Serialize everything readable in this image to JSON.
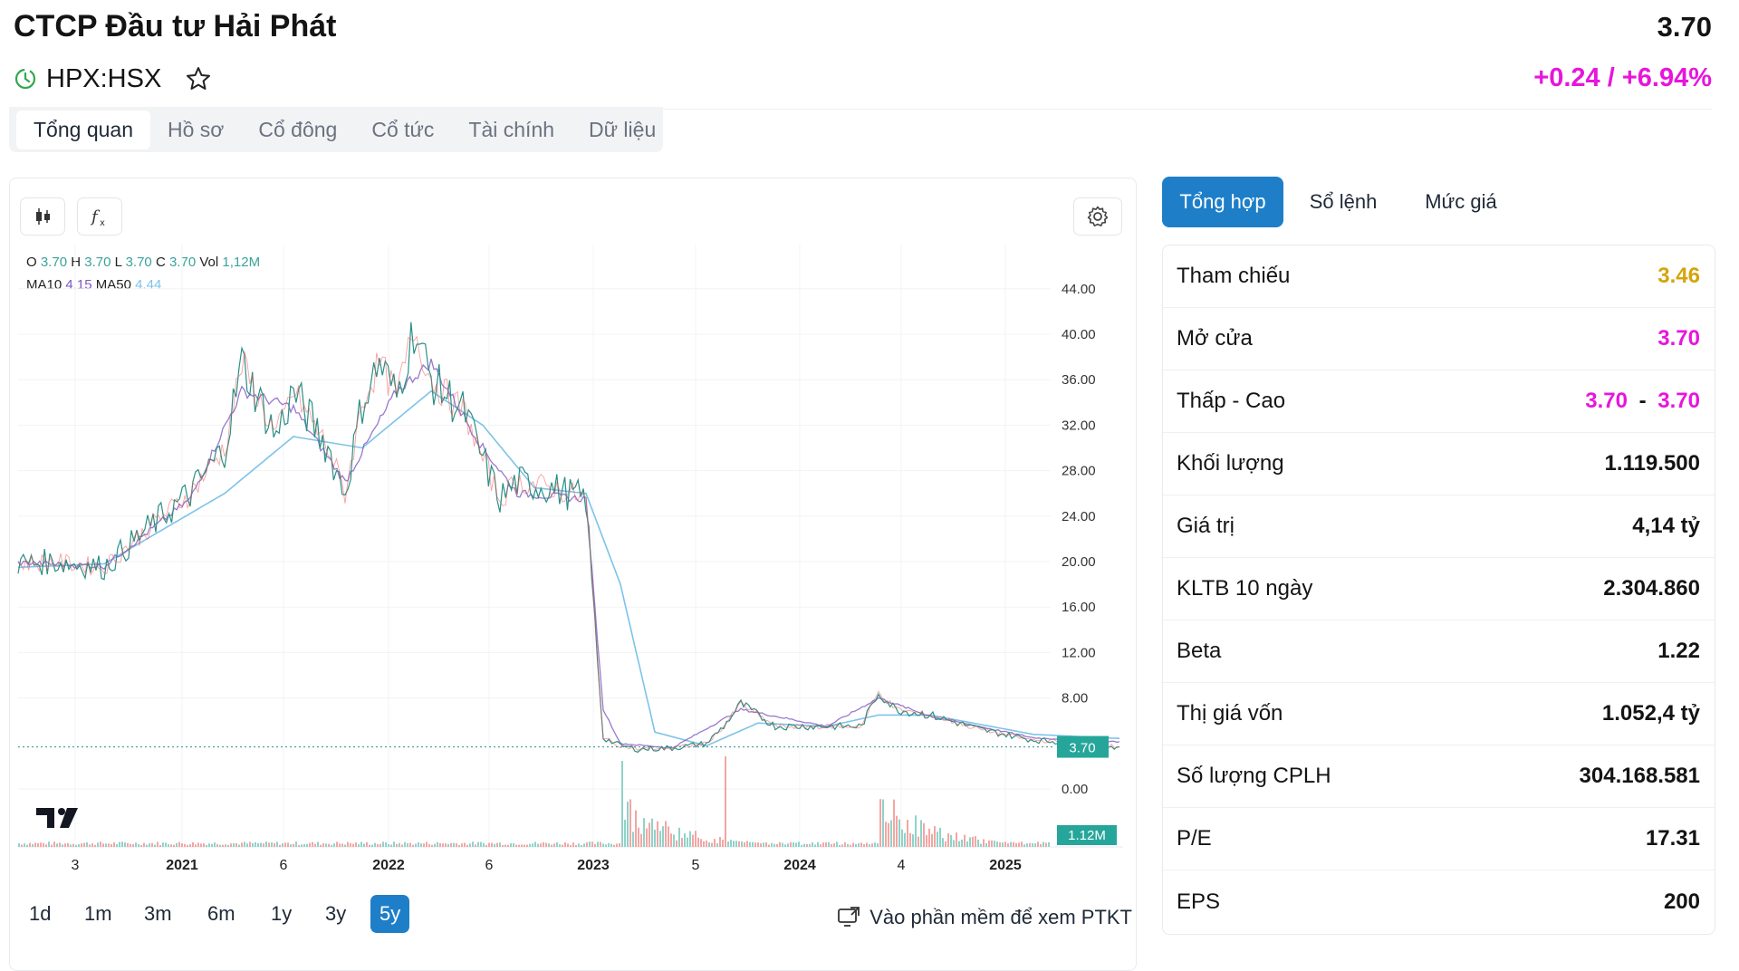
{
  "header": {
    "company_name": "CTCP Đầu tư Hải Phát",
    "ticker": "HPX:HSX",
    "price": "3.70",
    "change": "+0.24 / +6.94%"
  },
  "main_tabs": [
    "Tổng quan",
    "Hồ sơ",
    "Cổ đông",
    "Cổ tức",
    "Tài chính",
    "Dữ liệu"
  ],
  "chart": {
    "legend": {
      "o_label": "O",
      "o": "3.70",
      "h_label": "H",
      "h": "3.70",
      "l_label": "L",
      "l": "3.70",
      "c_label": "C",
      "c": "3.70",
      "vol_label": "Vol",
      "vol": "1,12M",
      "ma10_label": "MA10",
      "ma10": "4.15",
      "ma50_label": "MA50",
      "ma50": "4.44"
    },
    "price_tag": "3.70",
    "volume_tag": "1.12M",
    "ranges": [
      "1d",
      "1m",
      "3m",
      "6m",
      "1y",
      "3y",
      "5y"
    ],
    "active_range": "5y",
    "ptkt_link": "Vào phần mềm để xem PTKT"
  },
  "chart_data": {
    "type": "line",
    "title": "",
    "xlabel": "",
    "ylabel": "",
    "ylim": [
      -4.6,
      48
    ],
    "y_ticks": [
      "44.00",
      "40.00",
      "36.00",
      "32.00",
      "28.00",
      "24.00",
      "20.00",
      "16.00",
      "12.00",
      "8.00",
      "0.00"
    ],
    "x_ticks": [
      "3",
      "2021",
      "6",
      "2022",
      "6",
      "2023",
      "5",
      "2024",
      "4",
      "2025"
    ],
    "series": [
      {
        "name": "Price",
        "x": [
          "2020-01",
          "2020-03",
          "2020-06",
          "2020-09",
          "2020-11",
          "2021-01",
          "2021-02",
          "2021-04",
          "2021-05",
          "2021-07",
          "2021-08",
          "2021-09",
          "2021-10",
          "2021-11",
          "2021-12",
          "2022-01",
          "2022-03",
          "2022-04",
          "2022-05",
          "2022-06",
          "2022-08",
          "2022-10",
          "2022-11",
          "2022-12",
          "2023-01",
          "2023-03",
          "2023-05",
          "2023-06",
          "2023-07",
          "2023-09",
          "2023-12",
          "2024-02",
          "2024-03",
          "2024-04",
          "2024-06",
          "2024-09",
          "2024-12",
          "2025-03",
          "2025-05"
        ],
        "values": [
          19.8,
          20.0,
          19.5,
          23.5,
          26.0,
          30.0,
          37.5,
          31.0,
          35.0,
          30.0,
          26.0,
          34.0,
          37.5,
          34.5,
          40.5,
          36.0,
          33.0,
          29.0,
          25.5,
          27.0,
          26.5,
          25.5,
          4.5,
          3.8,
          3.5,
          3.6,
          4.0,
          5.5,
          7.5,
          5.5,
          5.5,
          5.5,
          8.5,
          7.0,
          6.5,
          5.2,
          4.3,
          4.0,
          3.7
        ]
      },
      {
        "name": "MA10",
        "x": [
          "2020-01",
          "2020-06",
          "2020-11",
          "2021-02",
          "2021-05",
          "2021-08",
          "2021-11",
          "2022-01",
          "2022-04",
          "2022-06",
          "2022-10",
          "2022-11",
          "2022-12",
          "2023-03",
          "2023-07",
          "2023-12",
          "2024-03",
          "2024-06",
          "2024-12",
          "2025-05"
        ],
        "values": [
          19.9,
          19.6,
          25.5,
          35.0,
          33.5,
          27.0,
          35.0,
          37.5,
          30.0,
          26.0,
          25.5,
          7.0,
          4.0,
          3.6,
          7.0,
          5.5,
          8.0,
          6.4,
          4.5,
          4.15
        ]
      },
      {
        "name": "MA50",
        "x": [
          "2020-01",
          "2020-06",
          "2021-01",
          "2021-05",
          "2021-09",
          "2022-01",
          "2022-04",
          "2022-07",
          "2022-10",
          "2022-12",
          "2023-02",
          "2023-05",
          "2023-08",
          "2023-12",
          "2024-03",
          "2024-06",
          "2024-12",
          "2025-05"
        ],
        "values": [
          19.5,
          19.8,
          26.0,
          31.0,
          30.0,
          35.0,
          32.0,
          26.5,
          26.0,
          18.0,
          5.0,
          3.8,
          5.8,
          5.5,
          6.5,
          6.5,
          4.8,
          4.44
        ]
      }
    ],
    "volume": {
      "last_value": "1.12M",
      "notable_spikes": [
        "2022-12",
        "2023-06",
        "2024-03"
      ]
    },
    "last_price": 3.7,
    "grid": true,
    "legend_position": "top-left"
  },
  "side_tabs": [
    "Tổng hợp",
    "Sổ lệnh",
    "Mức giá"
  ],
  "stats": [
    {
      "label": "Tham chiếu",
      "value": "3.46",
      "color": "#d4a50b"
    },
    {
      "label": "Mở cửa",
      "value": "3.70",
      "color": "#e815dc"
    },
    {
      "label": "Thấp - Cao",
      "low": "3.70",
      "sep": "-",
      "high": "3.70",
      "color": "#e815dc"
    },
    {
      "label": "Khối lượng",
      "value": "1.119.500"
    },
    {
      "label": "Giá trị",
      "value": "4,14 tỷ"
    },
    {
      "label": "KLTB 10 ngày",
      "value": "2.304.860"
    },
    {
      "label": "Beta",
      "value": "1.22"
    },
    {
      "label": "Thị giá vốn",
      "value": "1.052,4 tỷ"
    },
    {
      "label": "Số lượng CPLH",
      "value": "304.168.581"
    },
    {
      "label": "P/E",
      "value": "17.31"
    },
    {
      "label": "EPS",
      "value": "200"
    }
  ],
  "colors": {
    "accent": "#1e7fc8",
    "up": "#26a69a",
    "down": "#ef5350",
    "change": "#e815dc",
    "reference": "#d4a50b",
    "ma10": "#7e57c2",
    "ma50": "#7cc3e8"
  },
  "icons": [
    "clock-icon",
    "star-icon",
    "candlestick-icon",
    "fx-icon",
    "gear-icon",
    "tradingview-logo",
    "external-screen-icon"
  ]
}
